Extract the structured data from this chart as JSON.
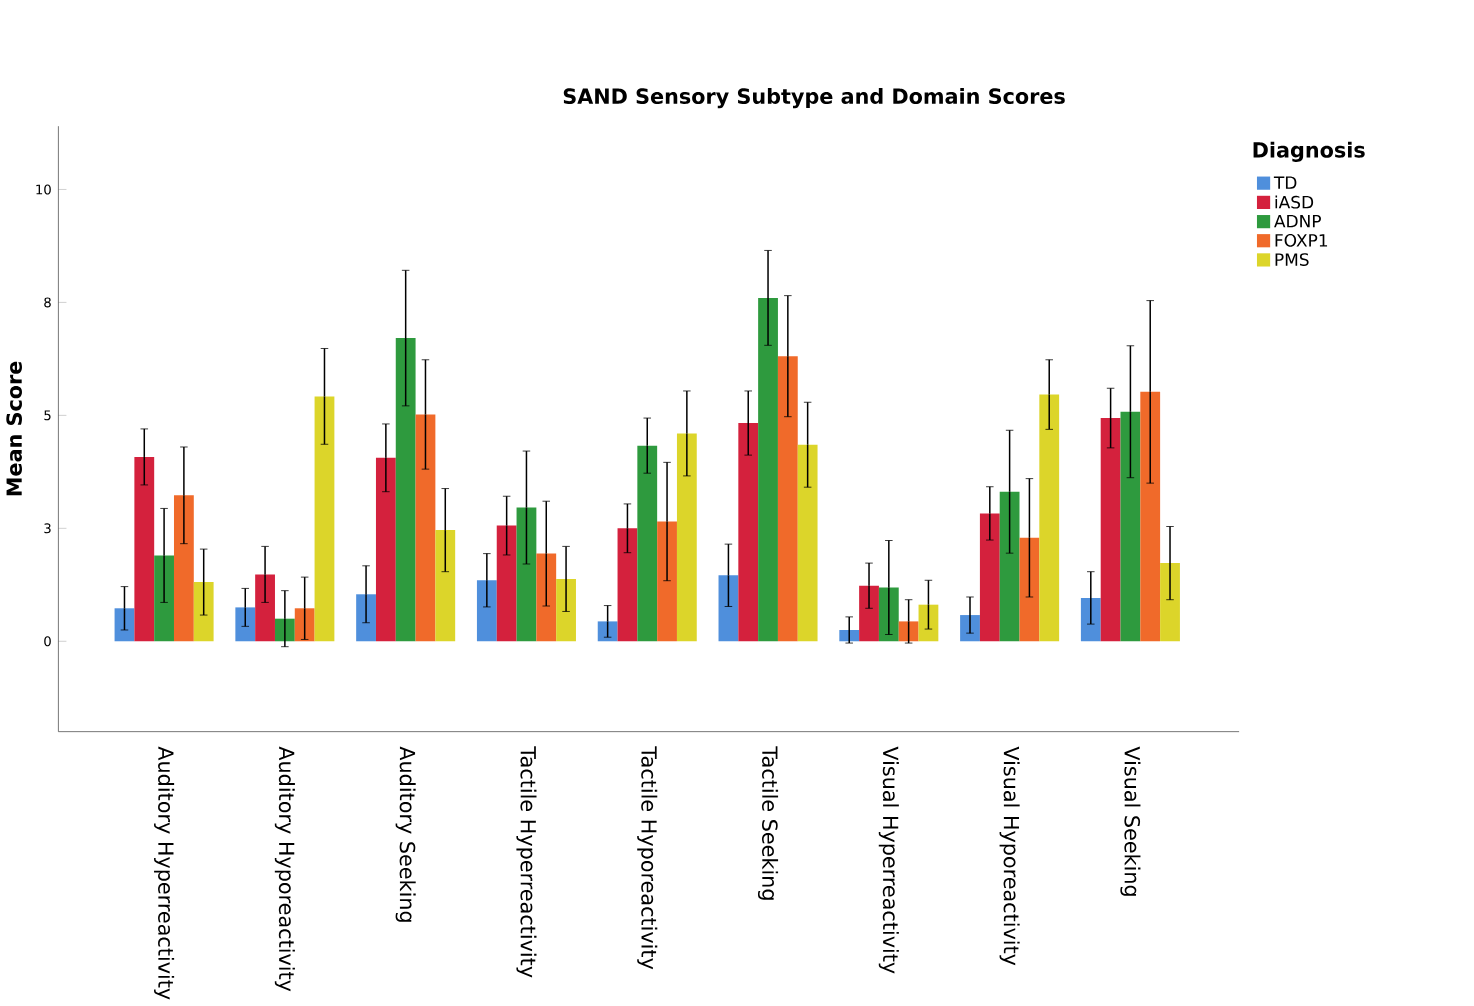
{
  "chart_data": {
    "type": "bar",
    "title": "SAND Sensory Subtype and Domain Scores",
    "ylabel": "Mean Score",
    "legend_title": "Diagnosis",
    "legend": "top right",
    "categories": [
      "Auditory Hyperreactivity",
      "Auditory Hyporeactivity",
      "Auditory Seeking",
      "Tactile Hyperreactivity",
      "Tactile Hyporeactivity",
      "Tactile Seeking",
      "Visual Hyperreactivity",
      "Visual Hyporeactivity",
      "Visual Seeking"
    ],
    "ylim": [
      -2,
      11.4
    ],
    "yticks": [
      0,
      {
        "value": 2.5,
        "label": "3"
      },
      5,
      {
        "value": 7.5,
        "label": "8"
      },
      10
    ],
    "series": [
      {
        "name": "TD",
        "color": "#4f8fdc",
        "values": [
          0.73,
          0.75,
          1.04,
          1.35,
          0.44,
          1.46,
          0.25,
          0.58,
          0.96
        ],
        "errors": [
          0.48,
          0.42,
          0.63,
          0.59,
          0.35,
          0.69,
          0.29,
          0.4,
          0.58
        ]
      },
      {
        "name": "iASD",
        "color": "#d4213d",
        "values": [
          4.08,
          1.48,
          4.06,
          2.56,
          2.5,
          4.83,
          1.23,
          2.83,
          4.94
        ],
        "errors": [
          0.62,
          0.62,
          0.75,
          0.65,
          0.54,
          0.71,
          0.5,
          0.59,
          0.66
        ]
      },
      {
        "name": "ADNP",
        "color": "#2e9a3e",
        "values": [
          1.9,
          0.5,
          6.71,
          2.96,
          4.33,
          7.6,
          1.19,
          3.31,
          5.08
        ],
        "errors": [
          1.04,
          0.62,
          1.5,
          1.25,
          0.61,
          1.05,
          1.04,
          1.36,
          1.46
        ]
      },
      {
        "name": "FOXP1",
        "color": "#f06a2a",
        "values": [
          3.23,
          0.73,
          5.02,
          1.94,
          2.65,
          6.31,
          0.44,
          2.29,
          5.52
        ],
        "errors": [
          1.07,
          0.69,
          1.21,
          1.16,
          1.31,
          1.34,
          0.48,
          1.31,
          2.02
        ]
      },
      {
        "name": "PMS",
        "color": "#dcd52a",
        "values": [
          1.31,
          5.42,
          2.46,
          1.38,
          4.6,
          4.35,
          0.81,
          5.46,
          1.73
        ],
        "errors": [
          0.73,
          1.06,
          0.92,
          0.72,
          0.94,
          0.94,
          0.54,
          0.77,
          0.81
        ]
      }
    ]
  }
}
